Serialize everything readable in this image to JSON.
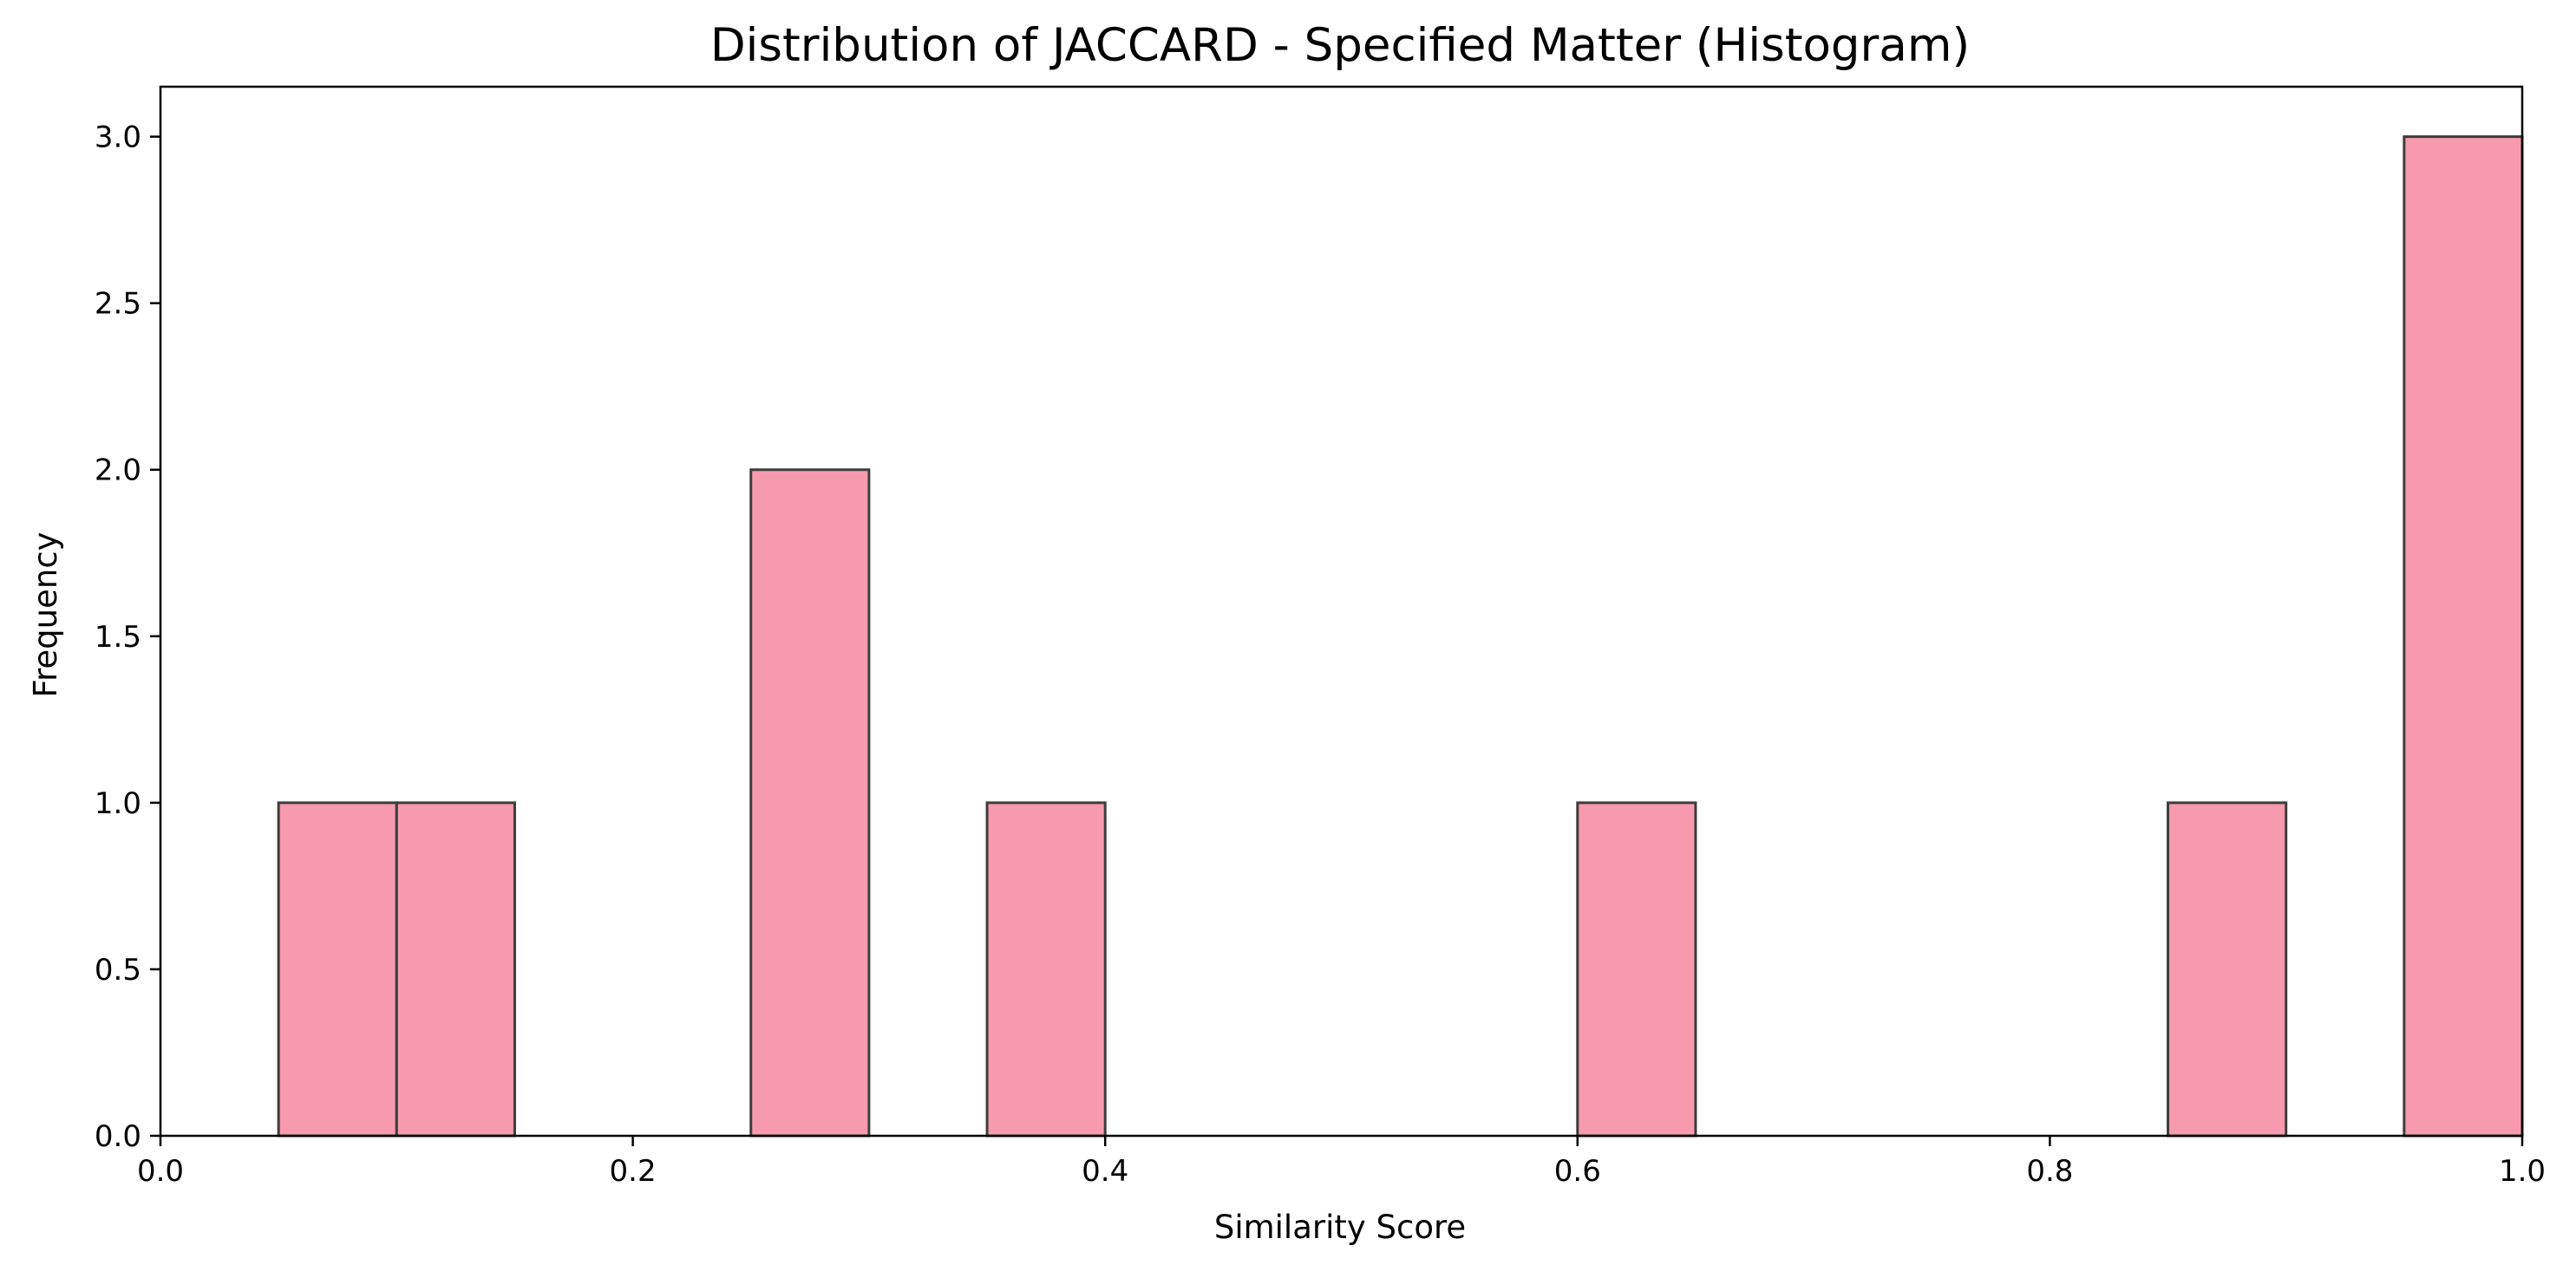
{
  "chart_data": {
    "type": "histogram",
    "title": "Distribution of JACCARD - Specified Matter (Histogram)",
    "xlabel": "Similarity Score",
    "ylabel": "Frequency",
    "xlim": [
      0.0,
      1.0
    ],
    "ylim": [
      0.0,
      3.15
    ],
    "grid": false,
    "legend": "none",
    "x_ticks": [
      0.0,
      0.2,
      0.4,
      0.6,
      0.8,
      1.0
    ],
    "x_tick_labels": [
      "0.0",
      "0.2",
      "0.4",
      "0.6",
      "0.8",
      "1.0"
    ],
    "y_ticks": [
      0.0,
      0.5,
      1.0,
      1.5,
      2.0,
      2.5,
      3.0
    ],
    "y_tick_labels": [
      "0.0",
      "0.5",
      "1.0",
      "1.5",
      "2.0",
      "2.5",
      "3.0"
    ],
    "bins": [
      {
        "x0": 0.05,
        "x1": 0.1,
        "count": 1
      },
      {
        "x0": 0.1,
        "x1": 0.15,
        "count": 1
      },
      {
        "x0": 0.25,
        "x1": 0.3,
        "count": 2
      },
      {
        "x0": 0.35,
        "x1": 0.4,
        "count": 1
      },
      {
        "x0": 0.6,
        "x1": 0.65,
        "count": 1
      },
      {
        "x0": 0.85,
        "x1": 0.9,
        "count": 1
      },
      {
        "x0": 0.95,
        "x1": 1.0,
        "count": 3
      }
    ],
    "colors": {
      "bar_fill": "#f89aad",
      "bar_edge": "#3d3d3d",
      "axis": "#000000"
    }
  }
}
